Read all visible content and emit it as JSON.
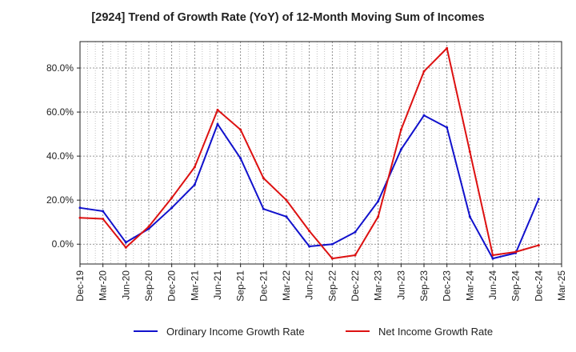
{
  "chart_data": {
    "type": "line",
    "title": "[2924]  Trend of Growth Rate (YoY) of 12-Month Moving Sum of Incomes",
    "xlabel": "",
    "ylabel": "",
    "categories": [
      "Dec-19",
      "Mar-20",
      "Jun-20",
      "Sep-20",
      "Dec-20",
      "Mar-21",
      "Jun-21",
      "Sep-21",
      "Dec-21",
      "Mar-22",
      "Jun-22",
      "Sep-22",
      "Dec-22",
      "Mar-23",
      "Jun-23",
      "Sep-23",
      "Dec-23",
      "Mar-24",
      "Jun-24",
      "Sep-24",
      "Dec-24",
      "Mar-25"
    ],
    "ylim": [
      -9,
      92
    ],
    "yticks": [
      0,
      20,
      40,
      60,
      80
    ],
    "ytick_labels": [
      "0.0%",
      "20.0%",
      "40.0%",
      "60.0%",
      "80.0%"
    ],
    "grid": true,
    "legend_position": "bottom",
    "series": [
      {
        "name": "Ordinary Income Growth Rate",
        "color": "#1111cc",
        "values": [
          16.5,
          15.0,
          0.8,
          7.0,
          16.5,
          27.0,
          54.5,
          39.0,
          16.0,
          12.5,
          -1.0,
          0.0,
          5.5,
          19.5,
          43.0,
          58.5,
          53.0,
          12.5,
          -6.5,
          -4.0,
          20.5,
          null
        ]
      },
      {
        "name": "Net Income Growth Rate",
        "color": "#dd1111",
        "values": [
          12.0,
          11.5,
          -1.5,
          8.0,
          21.0,
          35.0,
          61.0,
          52.0,
          30.0,
          20.0,
          6.0,
          -6.5,
          -5.0,
          12.5,
          52.0,
          78.5,
          89.0,
          42.0,
          -5.0,
          -3.5,
          -0.5,
          null
        ]
      }
    ]
  }
}
